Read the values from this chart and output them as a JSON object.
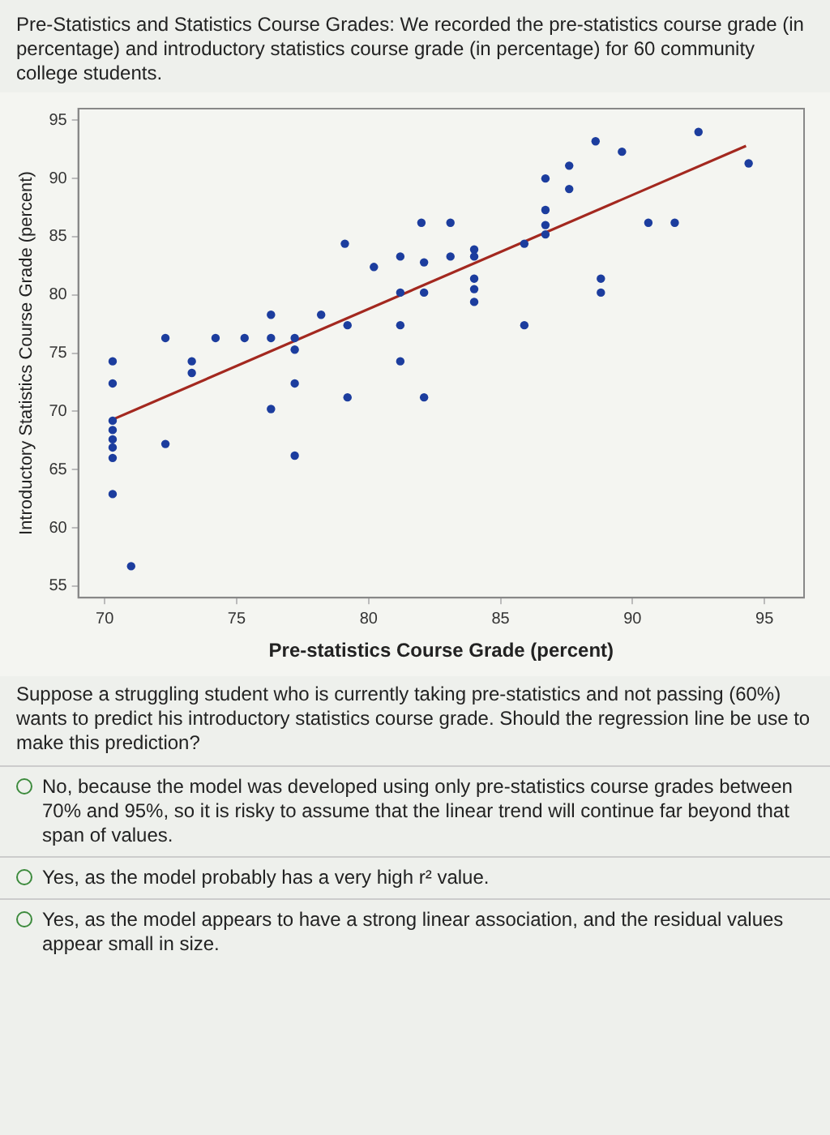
{
  "chart_data": {
    "type": "scatter",
    "title": "Pre-Statistics and Statistics Course Grades: We recorded the pre-statistics course grade (in percentage) and introductory statistics course grade (in percentage) for 60 community college students.",
    "xlabel": "Pre-statistics Course Grade (percent)",
    "ylabel": "Introductory Statistics Course Grade (percent)",
    "xlim": [
      69,
      96.5
    ],
    "xticks": [
      70,
      75,
      80,
      85,
      90,
      95
    ],
    "ylim": [
      54,
      96
    ],
    "yticks": [
      55,
      60,
      65,
      70,
      75,
      80,
      85,
      90,
      95
    ],
    "grid": false,
    "legend": false,
    "series": [
      {
        "marker": "circle",
        "color": "#1c3d9e",
        "x": [
          70.3,
          70.3,
          70.3,
          70.3,
          70.3,
          70.3,
          70.3,
          70.3,
          71.0,
          72.3,
          72.3,
          73.3,
          73.3,
          74.2,
          75.3,
          76.3,
          76.3,
          76.3,
          77.2,
          77.2,
          77.2,
          77.2,
          78.2,
          79.1,
          79.2,
          79.2,
          80.2,
          81.2,
          81.2,
          81.2,
          81.2,
          82.0,
          82.1,
          82.1,
          82.1,
          83.1,
          83.1,
          84.0,
          84.0,
          84.0,
          84.0,
          84.0,
          85.9,
          85.9,
          86.7,
          86.7,
          86.7,
          86.7,
          87.6,
          87.6,
          88.6,
          88.8,
          88.8,
          89.6,
          90.6,
          91.6,
          92.5,
          94.4
        ],
        "values": [
          74.3,
          72.4,
          69.2,
          68.4,
          67.6,
          66.9,
          66.0,
          62.9,
          56.7,
          76.3,
          67.2,
          74.3,
          73.3,
          76.3,
          76.3,
          78.3,
          76.3,
          70.2,
          76.3,
          75.3,
          72.4,
          66.2,
          78.3,
          84.4,
          77.4,
          71.2,
          82.4,
          83.3,
          80.2,
          77.4,
          74.3,
          86.2,
          82.8,
          80.2,
          71.2,
          86.2,
          83.3,
          83.9,
          83.3,
          81.4,
          80.5,
          79.4,
          84.4,
          77.4,
          90.0,
          87.3,
          86.0,
          85.2,
          91.1,
          89.1,
          93.2,
          81.4,
          80.2,
          92.3,
          86.2,
          86.2,
          94.0,
          91.3
        ]
      },
      {
        "type": "line",
        "color": "#a3281f",
        "x": [
          70.2,
          94.3
        ],
        "values": [
          69.2,
          92.8
        ]
      }
    ],
    "annotations": [
      "Suppose a struggling student who is currently taking pre-statistics and not passing (60%) wants to predict his introductory statistics course grade. Should the regression line be use to make this prediction?",
      "No, because the model was developed using only pre-statistics course grades between 70% and 95%, so it is risky to assume that the linear trend will continue far beyond that span of values.",
      "Yes, as the model probably has a very high r² value.",
      "Yes, as the model appears to have a strong linear association, and the residual values appear small in size."
    ]
  }
}
